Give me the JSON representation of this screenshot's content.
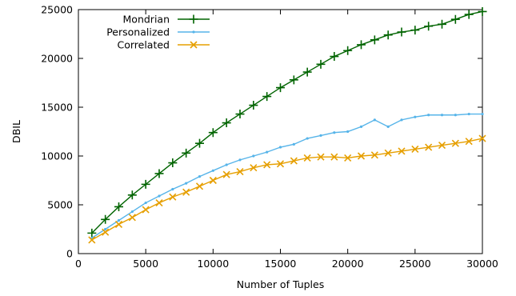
{
  "chart_data": {
    "type": "line",
    "title": "",
    "xlabel": "Number of Tuples",
    "ylabel": "DBIL",
    "xlim": [
      0,
      30000
    ],
    "ylim": [
      0,
      25000
    ],
    "xticks": [
      0,
      5000,
      10000,
      15000,
      20000,
      25000,
      30000
    ],
    "yticks": [
      0,
      5000,
      10000,
      15000,
      20000,
      25000
    ],
    "grid": false,
    "legend_position": "top-left",
    "x": [
      1000,
      2000,
      3000,
      4000,
      5000,
      6000,
      7000,
      8000,
      9000,
      10000,
      11000,
      12000,
      13000,
      14000,
      15000,
      16000,
      17000,
      18000,
      19000,
      20000,
      21000,
      22000,
      23000,
      24000,
      25000,
      26000,
      27000,
      28000,
      29000,
      30000
    ],
    "series": [
      {
        "name": "Mondrian",
        "color": "#006400",
        "marker": "plus",
        "values": [
          2100,
          3500,
          4800,
          6000,
          7100,
          8200,
          9300,
          10300,
          11300,
          12400,
          13400,
          14300,
          15200,
          16100,
          17000,
          17800,
          18600,
          19400,
          20200,
          20800,
          21400,
          21900,
          22400,
          22700,
          22900,
          23300,
          23500,
          24000,
          24500,
          24800
        ]
      },
      {
        "name": "Personalized",
        "color": "#56B4E9",
        "marker": "dot",
        "values": [
          1600,
          2500,
          3400,
          4300,
          5200,
          5900,
          6600,
          7200,
          7900,
          8500,
          9100,
          9600,
          10000,
          10400,
          10900,
          11200,
          11800,
          12100,
          12400,
          12500,
          13000,
          13700,
          13000,
          13700,
          14000,
          14200,
          14200,
          14200,
          14300,
          14300
        ]
      },
      {
        "name": "Correlated",
        "color": "#E69F00",
        "marker": "cross",
        "values": [
          1400,
          2200,
          3000,
          3700,
          4500,
          5200,
          5800,
          6300,
          6900,
          7500,
          8100,
          8400,
          8800,
          9100,
          9200,
          9500,
          9800,
          9900,
          9900,
          9800,
          10000,
          10100,
          10300,
          10500,
          10700,
          10900,
          11100,
          11300,
          11500,
          11800
        ]
      }
    ]
  }
}
